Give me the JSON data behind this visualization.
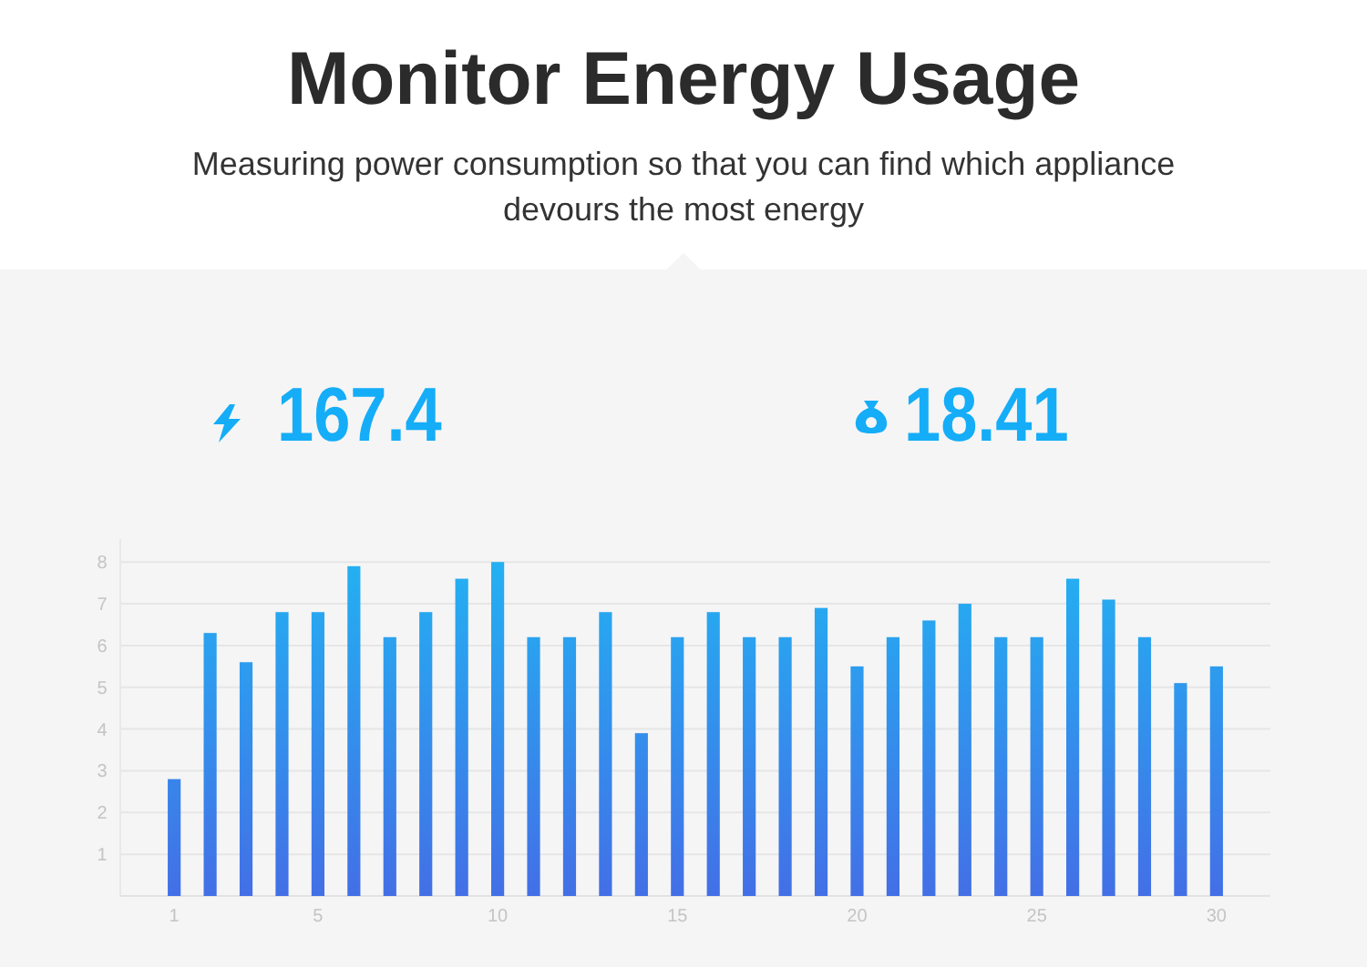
{
  "chart_data": {
    "type": "bar",
    "title": "Monitor Energy Usage",
    "subtitle": "Measuring power consumption so that you can find which appliance devours the most energy",
    "annotations": [
      "167.4",
      "18.41"
    ],
    "categories": [
      "1",
      null,
      null,
      null,
      "5",
      null,
      null,
      null,
      null,
      "10",
      null,
      null,
      null,
      null,
      "15",
      null,
      null,
      null,
      null,
      "20",
      null,
      null,
      null,
      null,
      "25",
      null,
      null,
      null,
      null,
      "30"
    ],
    "values": [
      2.8,
      6.3,
      5.6,
      6.8,
      6.8,
      7.9,
      6.2,
      6.8,
      7.6,
      8.0,
      6.2,
      6.2,
      6.8,
      3.9,
      6.2,
      6.8,
      6.2,
      6.2,
      6.9,
      5.5,
      6.2,
      6.6,
      7.0,
      6.2,
      6.2,
      7.6,
      7.1,
      6.2,
      5.1,
      5.5
    ],
    "color": "#2b90f4",
    "ylim": [
      0,
      8.55
    ],
    "yticks": [
      1,
      2,
      3,
      4,
      5,
      6,
      7,
      8
    ],
    "grid": "y"
  }
}
